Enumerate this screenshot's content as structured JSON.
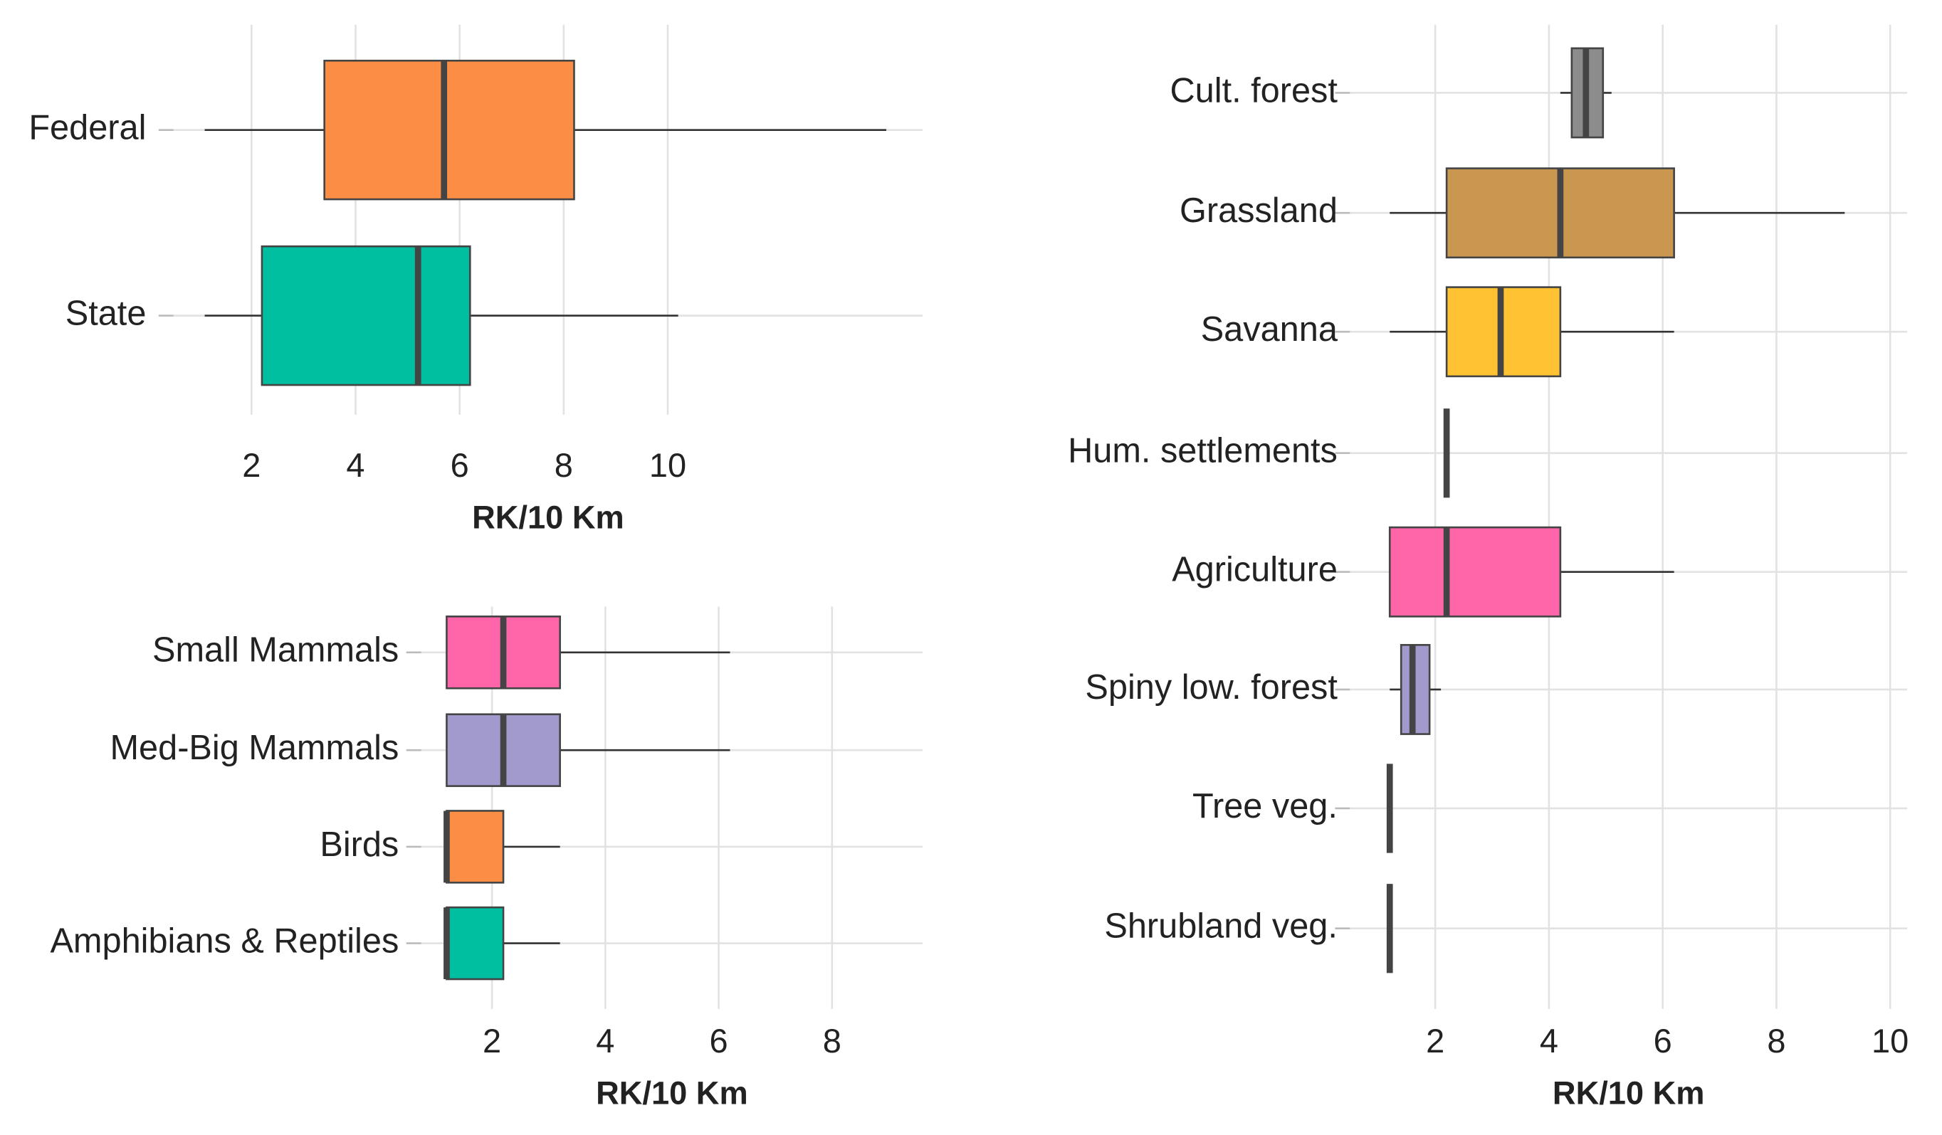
{
  "chart_data": [
    {
      "type": "box",
      "xlabel": "RK/10 Km",
      "categories": [
        "Federal",
        "State"
      ],
      "colors": [
        "#fc8d45",
        "#00bfa0"
      ],
      "whislo": [
        1.1,
        1.1
      ],
      "q1": [
        3.4,
        2.2
      ],
      "med": [
        5.7,
        5.2
      ],
      "q3": [
        8.2,
        6.2
      ],
      "whishi": [
        14.2,
        10.2
      ],
      "xlim": [
        0.5,
        14.9
      ],
      "xticks": [
        2,
        4,
        6,
        8,
        10
      ],
      "grid": true
    },
    {
      "type": "box",
      "xlabel": "RK/10 Km",
      "categories": [
        "Small Mammals",
        "Med-Big Mammals",
        "Birds",
        "Amphibians & Reptiles"
      ],
      "colors": [
        "#ff66aa",
        "#a29acc",
        "#fc8d45",
        "#00bfa0"
      ],
      "whislo": [
        1.2,
        1.2,
        1.2,
        1.2
      ],
      "q1": [
        1.2,
        1.2,
        1.2,
        1.2
      ],
      "med": [
        2.2,
        2.2,
        1.2,
        1.2
      ],
      "q3": [
        3.2,
        3.2,
        2.2,
        2.2
      ],
      "whishi": [
        6.2,
        6.2,
        3.2,
        3.2
      ],
      "xlim": [
        0.75,
        9.6
      ],
      "xticks": [
        2,
        4,
        6,
        8
      ],
      "grid": true
    },
    {
      "type": "box",
      "xlabel": "RK/10 Km",
      "categories": [
        "Cult. forest",
        "Grassland",
        "Savanna",
        "Hum. settlements",
        "Agriculture",
        "Spiny low. forest",
        "Tree veg.",
        "Shrubland veg."
      ],
      "colors": [
        "#8c8c8c",
        "#c9974f",
        "#ffc233",
        "#555555",
        "#ff66aa",
        "#a29acc",
        "#555555",
        "#555555"
      ],
      "whislo": [
        4.2,
        1.2,
        1.2,
        2.2,
        1.2,
        1.2,
        1.2,
        1.2
      ],
      "q1": [
        4.4,
        2.2,
        2.2,
        2.2,
        1.2,
        1.4,
        1.2,
        1.2
      ],
      "med": [
        4.65,
        4.2,
        3.15,
        2.2,
        2.2,
        1.6,
        1.2,
        1.2
      ],
      "q3": [
        4.95,
        6.2,
        4.2,
        2.2,
        4.2,
        1.9,
        1.2,
        1.2
      ],
      "whishi": [
        5.1,
        9.2,
        6.2,
        2.2,
        6.2,
        2.1,
        1.2,
        1.2
      ],
      "xlim": [
        0.5,
        10.3
      ],
      "xticks": [
        2,
        4,
        6,
        8,
        10
      ],
      "grid": true
    }
  ]
}
